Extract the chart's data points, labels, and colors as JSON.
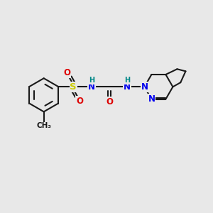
{
  "bg_color": "#e8e8e8",
  "bond_color": "#1a1a1a",
  "S_color": "#cccc00",
  "O_color": "#dd0000",
  "N_color": "#0000ee",
  "H_color": "#008888",
  "lw": 1.5,
  "fs": 8.5,
  "fsh": 7.0,
  "xlim": [
    0,
    10
  ],
  "ylim": [
    0,
    10
  ]
}
